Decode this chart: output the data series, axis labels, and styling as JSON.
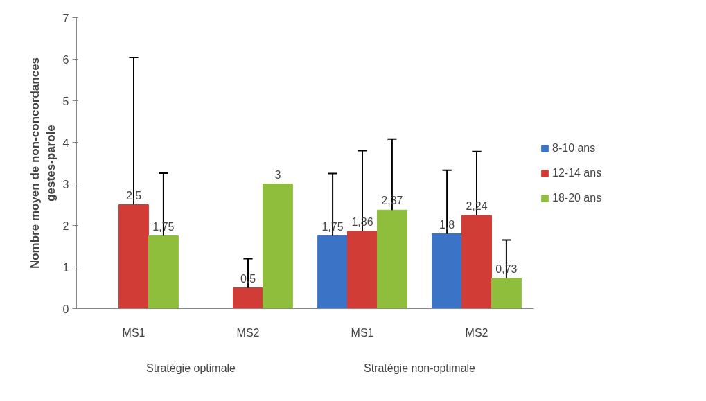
{
  "chart_data": {
    "type": "bar",
    "ylabel": "Nombre moyen de non-concordances\ngestes-parole",
    "categories": [
      "MS1",
      "MS2",
      "MS1",
      "MS2"
    ],
    "annotations": [
      "Stratégie optimale",
      "Stratégie non-optimale"
    ],
    "series": [
      {
        "name": "8-10 ans",
        "color": "#3b74c6",
        "values": [
          null,
          null,
          1.75,
          1.8
        ],
        "value_labels": [
          null,
          null,
          "1,75",
          "1,8"
        ],
        "errors": [
          null,
          null,
          [
            1.75,
            3.25
          ],
          [
            1.8,
            3.33
          ]
        ]
      },
      {
        "name": "12-14 ans",
        "color": "#d23c36",
        "values": [
          2.5,
          0.5,
          1.86,
          2.24
        ],
        "value_labels": [
          "2,5",
          "0,5",
          "1,86",
          "2,24"
        ],
        "errors": [
          [
            2.5,
            6.04
          ],
          [
            0.5,
            1.2
          ],
          [
            1.86,
            3.8
          ],
          [
            2.24,
            3.78
          ]
        ]
      },
      {
        "name": "18-20 ans",
        "color": "#8fbe3c",
        "values": [
          1.75,
          3,
          2.37,
          0.73
        ],
        "value_labels": [
          "1,75",
          "3",
          "2,37",
          "0,73"
        ],
        "errors": [
          [
            1.75,
            3.26
          ],
          null,
          [
            2.37,
            4.08
          ],
          [
            0.73,
            1.65
          ]
        ]
      }
    ],
    "ylim": [
      0,
      7
    ],
    "yticks": [
      0,
      1,
      2,
      3,
      4,
      5,
      6,
      7
    ],
    "grid": false,
    "legend": "right"
  }
}
